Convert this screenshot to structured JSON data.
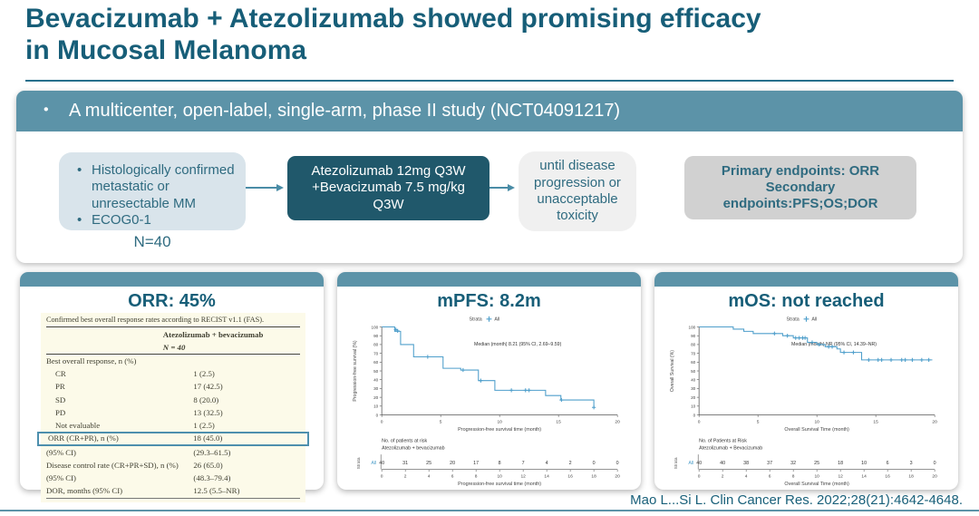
{
  "colors": {
    "accent_teal": "#175E78",
    "band_teal": "#5C93A8",
    "dark_box": "#20586B",
    "light_box": "#D9E4EB",
    "km_blue": "#4F9FCB",
    "highlight_border": "#4D8FAD"
  },
  "header": {
    "title_line1": "Bevacizumab + Atezolizumab showed promising efficacy",
    "title_line2": "in Mucosal Melanoma"
  },
  "banner": {
    "text": "A multicenter, open-label, single-arm, phase II study (NCT04091217)"
  },
  "flow": {
    "criteria_box": {
      "bullet1": "Histologically confirmed  metastatic or unresectable MM",
      "bullet2": "ECOG0-1",
      "n_label": "N=40"
    },
    "treatment_box": {
      "text": "Atezolizumab 12mg Q3W +Bevacizumab 7.5 mg/kg Q3W"
    },
    "duration_box": {
      "text": "until disease progression or unacceptable toxicity"
    },
    "endpoints_box": {
      "line1": "Primary endpoints: ORR",
      "line2": "Secondary",
      "line3": "endpoints:PFS;OS;DOR"
    }
  },
  "orr_panel": {
    "title": "ORR: 45%",
    "caption": "Confirmed best overall response rates according to RECIST v1.1 (FAS).",
    "column_header": "Atezolizumab + bevacizumab",
    "column_subheader": "N = 40",
    "rows": [
      {
        "label": "Best overall response, n (%)",
        "value": "",
        "indent": 0,
        "highlight": false
      },
      {
        "label": "CR",
        "value": "1 (2.5)",
        "indent": 1,
        "highlight": false
      },
      {
        "label": "PR",
        "value": "17 (42.5)",
        "indent": 1,
        "highlight": false
      },
      {
        "label": "SD",
        "value": "8 (20.0)",
        "indent": 1,
        "highlight": false
      },
      {
        "label": "PD",
        "value": "13 (32.5)",
        "indent": 1,
        "highlight": false
      },
      {
        "label": "Not evaluable",
        "value": "1 (2.5)",
        "indent": 1,
        "highlight": false
      },
      {
        "label": "ORR (CR+PR), n (%)",
        "value": "18 (45.0)",
        "indent": 0,
        "highlight": true
      },
      {
        "label": "(95% CI)",
        "value": "(29.3–61.5)",
        "indent": 0,
        "highlight": false
      },
      {
        "label": "Disease control rate (CR+PR+SD), n (%)",
        "value": "26 (65.0)",
        "indent": 0,
        "highlight": false
      },
      {
        "label": "(95% CI)",
        "value": "(48.3–79.4)",
        "indent": 0,
        "highlight": false
      },
      {
        "label": "DOR, months (95% CI)",
        "value": "12.5 (5.5–NR)",
        "indent": 0,
        "highlight": false
      }
    ]
  },
  "pfs_panel": {
    "title": "mPFS: 8.2m"
  },
  "os_panel": {
    "title": "mOS: not reached"
  },
  "footer": {
    "citation": "Mao L...Si L. Clin Cancer Res. 2022;28(21):4642-4648."
  },
  "chart_data": [
    {
      "type": "line",
      "subtype": "kaplan-meier",
      "title": "mPFS: 8.2m",
      "legend_label": "Strata",
      "legend_item": "All",
      "annotation": "Median (month) 8.21 (95% CI, 2.69–9.59)",
      "xlabel": "Progression-free survival time (month)",
      "ylabel": "Progression-free survival (%)",
      "xlim": [
        0,
        20
      ],
      "ylim": [
        0,
        100
      ],
      "xticks": [
        0,
        5,
        10,
        15,
        20
      ],
      "yticks": [
        0,
        10,
        20,
        30,
        40,
        50,
        60,
        70,
        80,
        90,
        100
      ],
      "color": "#4F9FCB",
      "steps": [
        [
          0,
          100
        ],
        [
          1.1,
          100
        ],
        [
          1.1,
          95
        ],
        [
          1.6,
          95
        ],
        [
          1.6,
          80
        ],
        [
          2.7,
          80
        ],
        [
          2.7,
          66
        ],
        [
          5.2,
          66
        ],
        [
          5.2,
          53
        ],
        [
          6.7,
          53
        ],
        [
          6.7,
          51
        ],
        [
          8.2,
          51
        ],
        [
          8.2,
          39
        ],
        [
          9.6,
          39
        ],
        [
          9.6,
          28
        ],
        [
          13.9,
          28
        ],
        [
          13.9,
          22
        ],
        [
          15.2,
          22
        ],
        [
          15.2,
          17
        ],
        [
          18,
          17
        ],
        [
          18,
          8.5
        ]
      ],
      "censors": [
        [
          1.2,
          97
        ],
        [
          1.35,
          95.5
        ],
        [
          3.9,
          66
        ],
        [
          6.9,
          51
        ],
        [
          8.4,
          39
        ],
        [
          11,
          28
        ],
        [
          12.2,
          28
        ],
        [
          12.5,
          28
        ],
        [
          15.25,
          17
        ],
        [
          18,
          8.5
        ]
      ],
      "risk_table": {
        "header1": "No. of patients at risk",
        "header2": "Atezolizumab + bevacizumab",
        "strata_label": "Strata",
        "row_label": "All",
        "times": [
          0,
          2,
          4,
          6,
          8,
          10,
          12,
          14,
          16,
          18,
          20
        ],
        "at_risk": [
          40,
          31,
          25,
          20,
          17,
          8,
          7,
          4,
          2,
          0,
          0
        ]
      }
    },
    {
      "type": "line",
      "subtype": "kaplan-meier",
      "title": "mOS: not reached",
      "legend_label": "Strata",
      "legend_item": "All",
      "annotation": "Median (month) NR (95% CI, 14.39–NR)",
      "xlabel": "Overall Survival Time (month)",
      "ylabel": "Overall Survival (%)",
      "xlim": [
        0,
        20
      ],
      "ylim": [
        0,
        100
      ],
      "xticks": [
        0,
        5,
        10,
        15,
        20
      ],
      "yticks": [
        0,
        10,
        20,
        30,
        40,
        50,
        60,
        70,
        80,
        90,
        100
      ],
      "color": "#4F9FCB",
      "steps": [
        [
          0,
          100
        ],
        [
          2.9,
          100
        ],
        [
          2.9,
          97.5
        ],
        [
          3.8,
          97.5
        ],
        [
          3.8,
          95
        ],
        [
          4.6,
          95
        ],
        [
          4.6,
          92.5
        ],
        [
          7.1,
          92.5
        ],
        [
          7.1,
          90
        ],
        [
          8,
          90
        ],
        [
          8,
          87.5
        ],
        [
          9.2,
          87.5
        ],
        [
          9.2,
          82.5
        ],
        [
          10,
          82.5
        ],
        [
          10,
          80
        ],
        [
          10.7,
          80
        ],
        [
          10.7,
          77.5
        ],
        [
          11.7,
          77.5
        ],
        [
          11.7,
          75
        ],
        [
          12,
          75
        ],
        [
          12,
          71
        ],
        [
          13.8,
          71
        ],
        [
          13.8,
          62.5
        ],
        [
          19.8,
          62.5
        ]
      ],
      "censors": [
        [
          6.4,
          92.5
        ],
        [
          7.5,
          90
        ],
        [
          8.2,
          87.5
        ],
        [
          8.5,
          87.5
        ],
        [
          8.8,
          87.5
        ],
        [
          9,
          87.5
        ],
        [
          9.6,
          82.5
        ],
        [
          10.2,
          80
        ],
        [
          11,
          77.5
        ],
        [
          11.3,
          77.5
        ],
        [
          12.3,
          71
        ],
        [
          13.1,
          71
        ],
        [
          14.4,
          62.5
        ],
        [
          15.2,
          62.5
        ],
        [
          15.5,
          62.5
        ],
        [
          16.3,
          62.5
        ],
        [
          17.2,
          62.5
        ],
        [
          17.5,
          62.5
        ],
        [
          18.1,
          62.5
        ],
        [
          18.9,
          62.5
        ],
        [
          19.5,
          62.5
        ]
      ],
      "risk_table": {
        "header1": "No. of Patients at Risk",
        "header2": "Atezolizumab  +  Bevacizumab",
        "strata_label": "Strata",
        "row_label": "All",
        "times": [
          0,
          2,
          4,
          6,
          8,
          10,
          12,
          14,
          16,
          18,
          20
        ],
        "at_risk": [
          40,
          40,
          38,
          37,
          32,
          25,
          18,
          10,
          6,
          3,
          0
        ]
      }
    }
  ]
}
